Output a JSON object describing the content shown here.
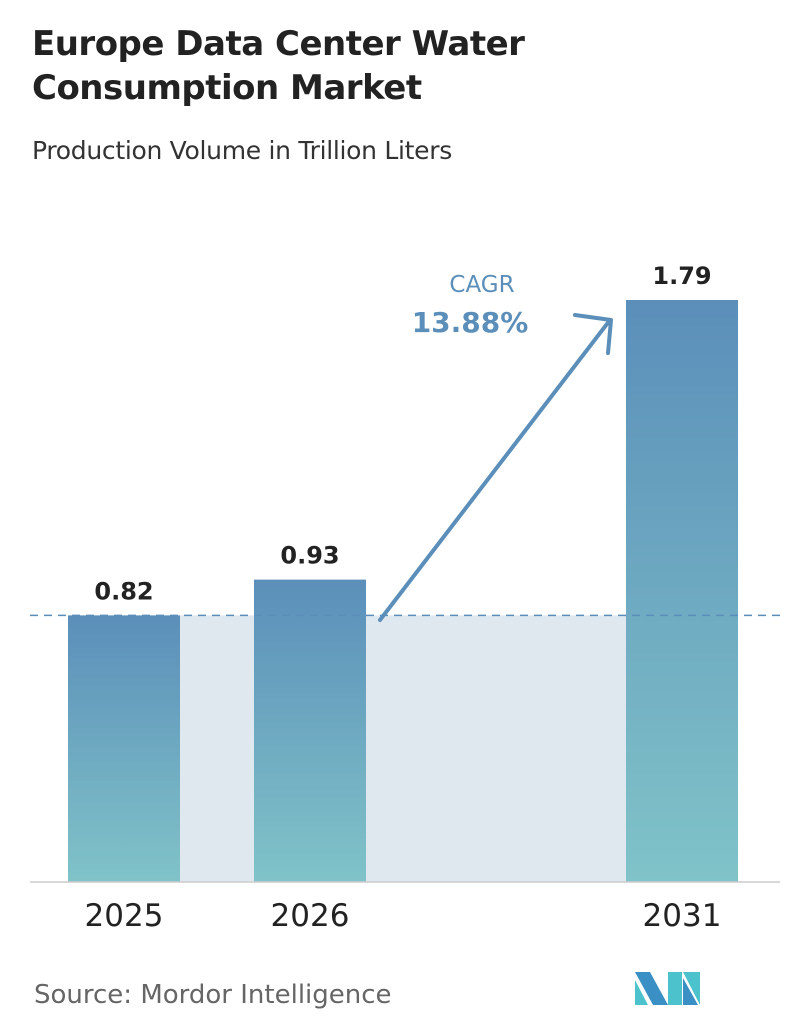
{
  "title_line1": "Europe Data Center Water",
  "title_line2": "Consumption Market",
  "subtitle": "Production Volume in Trillion Liters",
  "source": "Source:  Mordor Intelligence",
  "logo_text": "MI",
  "chart_data": {
    "type": "bar",
    "categories": [
      "2025",
      "2026",
      "2031"
    ],
    "values": [
      0.82,
      0.93,
      1.79
    ],
    "data_labels": [
      "0.82",
      "0.93",
      "1.79"
    ],
    "annotation": {
      "label": "CAGR",
      "value": "13.88%"
    },
    "xlabel": "",
    "ylabel": "",
    "grid": false,
    "colors": {
      "bar_top": "#5b8fba",
      "bar_bottom": "#80c3c8",
      "accent": "#5b8fba",
      "shade": "#dfe7ef"
    }
  }
}
